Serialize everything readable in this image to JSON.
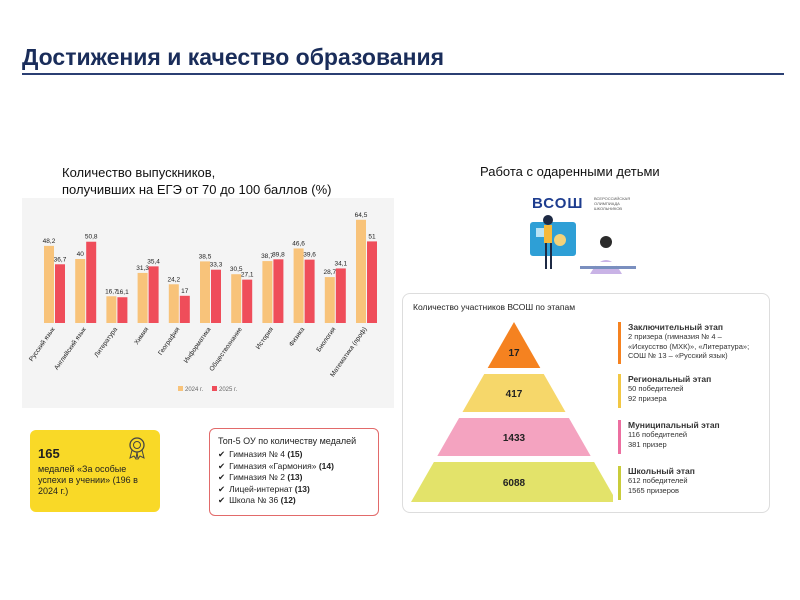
{
  "page": {
    "title": "Достижения и качество образования"
  },
  "chart_data": {
    "type": "bar",
    "title": "Количество выпускников,\nполучивших на ЕГЭ от 70 до 100 баллов (%)",
    "categories": [
      "Русский язык",
      "Английский язык",
      "Литература",
      "Химия",
      "География",
      "Информатика",
      "Обществознание",
      "История",
      "Физика",
      "Биология",
      "Математика (проф)"
    ],
    "series": [
      {
        "name": "2024 г.",
        "color": "#f8c37a",
        "values": [
          48.2,
          40,
          16.7,
          31.3,
          24.2,
          38.5,
          30.5,
          38.7,
          46.6,
          28.7,
          64.5
        ]
      },
      {
        "name": "2025 г.",
        "color": "#ef4d5a",
        "values": [
          36.7,
          50.8,
          16.1,
          35.4,
          17,
          33.3,
          27.1,
          39.8,
          39.6,
          34.1,
          51
        ]
      }
    ],
    "value_labels": [
      [
        "48,2",
        "40",
        "16,7",
        "31,3",
        "24,2",
        "38,5",
        "30,5",
        "38,7",
        "46,6",
        "28,7",
        "64,5"
      ],
      [
        "36,7",
        "50,8",
        "16,1",
        "35,4",
        "17",
        "33,3",
        "27,1",
        "39,8",
        "39,6",
        "34,1",
        "51"
      ]
    ],
    "ylim": [
      0,
      70
    ],
    "grid": false,
    "legend_position": "bottom-right"
  },
  "gifted": {
    "title": "Работа с одаренными детьми",
    "logo_text": "ВСОШ",
    "logo_sub": "ВСЕРОССИЙСКАЯ ОЛИМПИАДА ШКОЛЬНИКОВ"
  },
  "medals": {
    "count": "165",
    "text": "медалей «За особые успехи в учении» (196 в 2024 г.)",
    "icon": "medal-icon"
  },
  "top5": {
    "title": "Топ-5 ОУ по количеству медалей",
    "items": [
      {
        "name": "Гимназия № 4",
        "count": "(15)"
      },
      {
        "name": "Гимназия «Гармония»",
        "count": "(14)"
      },
      {
        "name": "Гимназия № 2",
        "count": "(13)"
      },
      {
        "name": "Лицей-интернат",
        "count": "(13)"
      },
      {
        "name": "Школа № 36",
        "count": "(12)"
      }
    ]
  },
  "vsosh": {
    "title": "Количество участников ВСОШ по этапам",
    "levels": [
      {
        "value": "17",
        "color": "#f58220"
      },
      {
        "value": "417",
        "color": "#f6d76a"
      },
      {
        "value": "1433",
        "color": "#f4a3c0"
      },
      {
        "value": "6088",
        "color": "#e3e36a"
      }
    ],
    "stages": [
      {
        "name": "Заключительный этап",
        "color": "#f58220",
        "lines": [
          "2 призера (гимназия № 4 –",
          "«Искусство (МХК)», «Литература»;",
          "СОШ № 13 – «Русский язык)"
        ]
      },
      {
        "name": "Региональный этап",
        "color": "#f2c744",
        "lines": [
          "50 победителей",
          "92 призера"
        ]
      },
      {
        "name": "Муниципальный этап",
        "color": "#ec6fa0",
        "lines": [
          "116 победителей",
          "381 призер"
        ]
      },
      {
        "name": "Школьный этап",
        "color": "#c9cc3b",
        "lines": [
          "612 победителей",
          "1565 призеров"
        ]
      }
    ]
  }
}
